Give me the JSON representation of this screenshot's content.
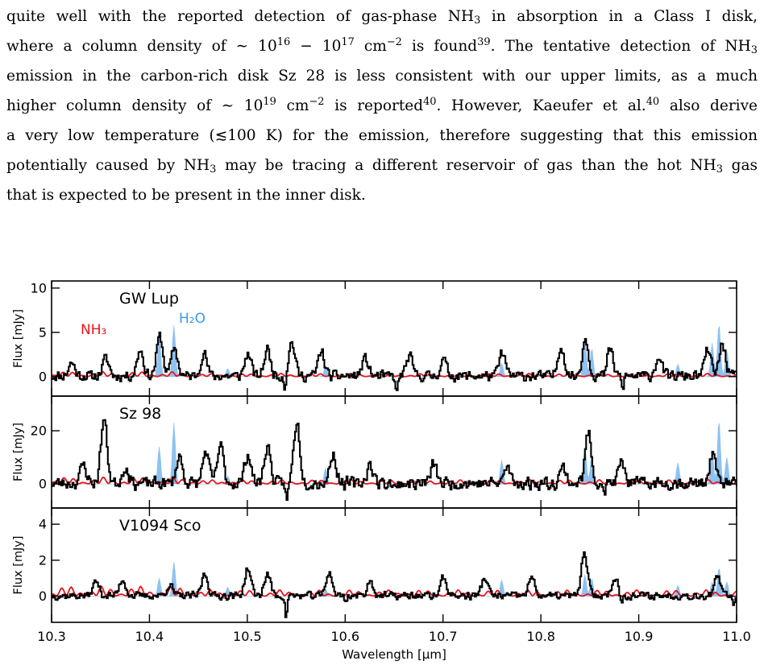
{
  "paragraph": {
    "l1_a": "quite well with the reported detection of gas-phase NH",
    "l1_b": " in absorption in a Class I disk,",
    "l2_a": "where a column density of ∼ 10",
    "l2_b": " − 10",
    "l2_c": " cm",
    "l2_d": " is found",
    "l2_e": ". The tentative detection of NH",
    "l3": "emission in the carbon-rich disk Sz 28 is less consistent with our upper limits, as a much",
    "l4_a": "higher column density of ∼ 10",
    "l4_b": " cm",
    "l4_c": " is reported",
    "l4_d": ". However, Kaeufer et al.",
    "l4_e": " also derive",
    "l5": "a very low temperature (≲100 K) for the emission, therefore suggesting that this emission",
    "l6_a": "potentially caused by NH",
    "l6_b": " may be tracing a different reservoir of gas than the hot NH",
    "l6_c": " gas",
    "l7": "that is expected to be present in the inner disk.",
    "sub3": "3",
    "exp16": "16",
    "exp17": "17",
    "exp19": "19",
    "expm2": "−2",
    "ref39": "39",
    "ref40": "40"
  },
  "chart_data": {
    "type": "line",
    "xlabel": "Wavelength [μm]",
    "xlim": [
      10.3,
      11.0
    ],
    "xticks": [
      "10.3",
      "10.4",
      "10.5",
      "10.6",
      "10.7",
      "10.8",
      "10.9",
      "11.0"
    ],
    "colors": {
      "observed": "#000000",
      "nh3": "#e8141c",
      "h2o": "#8ec2f0"
    },
    "legend": {
      "nh3": "NH₃",
      "h2o": "H₂O"
    },
    "panels": [
      {
        "name": "GW Lup",
        "ylabel": "Flux [mJy]",
        "ylim": [
          -2.2,
          10.8
        ],
        "yticks": [
          0,
          5,
          10
        ],
        "h2o_peaks": [
          [
            10.41,
            4.5
          ],
          [
            10.425,
            5.8
          ],
          [
            10.48,
            0.9
          ],
          [
            10.58,
            1.2
          ],
          [
            10.76,
            1.5
          ],
          [
            10.845,
            4.0
          ],
          [
            10.852,
            3.2
          ],
          [
            10.94,
            1.4
          ],
          [
            10.975,
            3.8
          ],
          [
            10.982,
            6.0
          ],
          [
            10.99,
            3.0
          ]
        ],
        "obs_bumps": [
          [
            10.32,
            1.5
          ],
          [
            10.355,
            2.0
          ],
          [
            10.39,
            3.0
          ],
          [
            10.41,
            4.5
          ],
          [
            10.425,
            3.2
          ],
          [
            10.455,
            2.6
          ],
          [
            10.5,
            2.5
          ],
          [
            10.52,
            3.0
          ],
          [
            10.545,
            3.8
          ],
          [
            10.575,
            2.8
          ],
          [
            10.62,
            2.0
          ],
          [
            10.665,
            2.2
          ],
          [
            10.7,
            1.8
          ],
          [
            10.76,
            2.6
          ],
          [
            10.82,
            3.4
          ],
          [
            10.845,
            4.2
          ],
          [
            10.87,
            3.0
          ],
          [
            10.92,
            2.2
          ],
          [
            10.97,
            3.0
          ],
          [
            10.985,
            3.6
          ]
        ],
        "obs_dips": [
          [
            10.538,
            -1.5
          ],
          [
            10.652,
            -2.2
          ],
          [
            10.883,
            -1.5
          ],
          [
            10.865,
            -0.6
          ]
        ],
        "obs_noise": 0.7,
        "nh3_amp": 0.35,
        "seed": 11
      },
      {
        "name": "Sz 98",
        "ylabel": "Flux [mJy]",
        "ylim": [
          -9,
          33
        ],
        "yticks": [
          0,
          20
        ],
        "h2o_peaks": [
          [
            10.41,
            14
          ],
          [
            10.425,
            23
          ],
          [
            10.48,
            3
          ],
          [
            10.58,
            6
          ],
          [
            10.76,
            9
          ],
          [
            10.845,
            14
          ],
          [
            10.852,
            11
          ],
          [
            10.94,
            8
          ],
          [
            10.975,
            12
          ],
          [
            10.982,
            24
          ],
          [
            10.99,
            10
          ]
        ],
        "obs_bumps": [
          [
            10.332,
            7
          ],
          [
            10.353,
            24
          ],
          [
            10.375,
            6
          ],
          [
            10.43,
            10
          ],
          [
            10.457,
            12
          ],
          [
            10.472,
            14
          ],
          [
            10.5,
            11
          ],
          [
            10.52,
            14
          ],
          [
            10.55,
            23
          ],
          [
            10.587,
            11
          ],
          [
            10.625,
            7
          ],
          [
            10.69,
            7
          ],
          [
            10.765,
            6
          ],
          [
            10.822,
            6
          ],
          [
            10.848,
            19
          ],
          [
            10.882,
            8
          ],
          [
            10.975,
            11
          ]
        ],
        "obs_dips": [
          [
            10.54,
            -7
          ],
          [
            10.652,
            -3
          ],
          [
            10.865,
            -3
          ]
        ],
        "obs_noise": 2.8,
        "nh3_amp": 1.6,
        "seed": 23
      },
      {
        "name": "V1094 Sco",
        "ylabel": "Flux [mJy]",
        "ylim": [
          -1.45,
          4.9
        ],
        "yticks": [
          0,
          2,
          4
        ],
        "h2o_peaks": [
          [
            10.41,
            1.0
          ],
          [
            10.425,
            1.9
          ],
          [
            10.48,
            0.5
          ],
          [
            10.58,
            0.4
          ],
          [
            10.76,
            0.9
          ],
          [
            10.845,
            1.2
          ],
          [
            10.852,
            1.0
          ],
          [
            10.94,
            0.6
          ],
          [
            10.975,
            0.8
          ],
          [
            10.982,
            1.6
          ],
          [
            10.99,
            0.8
          ]
        ],
        "obs_bumps": [
          [
            10.345,
            0.8
          ],
          [
            10.372,
            0.9
          ],
          [
            10.42,
            0.6
          ],
          [
            10.456,
            1.2
          ],
          [
            10.5,
            1.5
          ],
          [
            10.52,
            1.2
          ],
          [
            10.583,
            1.3
          ],
          [
            10.625,
            0.8
          ],
          [
            10.7,
            1.0
          ],
          [
            10.742,
            1.0
          ],
          [
            10.79,
            1.0
          ],
          [
            10.844,
            2.3
          ],
          [
            10.875,
            1.0
          ],
          [
            10.98,
            1.0
          ]
        ],
        "obs_dips": [
          [
            10.539,
            -1.2
          ],
          [
            10.6,
            -0.3
          ],
          [
            10.882,
            -0.5
          ],
          [
            10.997,
            -0.4
          ]
        ],
        "obs_noise": 0.25,
        "nh3_amp": 0.35,
        "seed": 37
      }
    ]
  }
}
